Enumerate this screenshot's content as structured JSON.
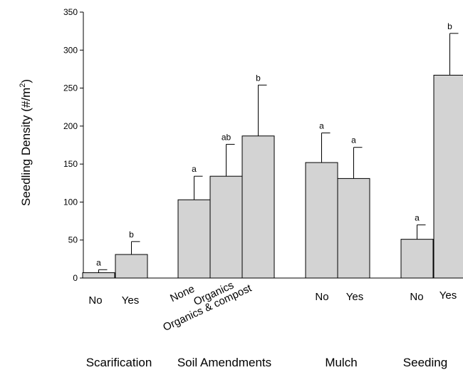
{
  "chart_data": {
    "type": "bar",
    "ylabel": {
      "main": "Seedling Density (#/m",
      "sup": "2",
      "end": ")"
    },
    "ylim": [
      0,
      350
    ],
    "yticks": [
      "0",
      "50",
      "100",
      "150",
      "200",
      "250",
      "300",
      "350"
    ],
    "bar_color": "#d3d3d3",
    "error_bars": "upper",
    "grid": false,
    "groups": [
      {
        "name": "Scarification",
        "categories": [
          "No",
          "Yes"
        ],
        "values": [
          7,
          31
        ],
        "errors": [
          4,
          17
        ],
        "significance": [
          "a",
          "b"
        ]
      },
      {
        "name": "Soil Amendments",
        "categories": [
          "None",
          "Organics",
          "Organics & compost"
        ],
        "values": [
          103,
          134,
          187
        ],
        "errors": [
          31,
          42,
          67
        ],
        "significance": [
          "a",
          "ab",
          "b"
        ]
      },
      {
        "name": "Mulch",
        "categories": [
          "No",
          "Yes"
        ],
        "values": [
          152,
          131
        ],
        "errors": [
          39,
          41
        ],
        "significance": [
          "a",
          "a"
        ]
      },
      {
        "name": "Seeding",
        "categories": [
          "No",
          "Yes"
        ],
        "values": [
          51,
          267
        ],
        "errors": [
          19,
          55
        ],
        "significance": [
          "a",
          "b"
        ]
      }
    ]
  }
}
